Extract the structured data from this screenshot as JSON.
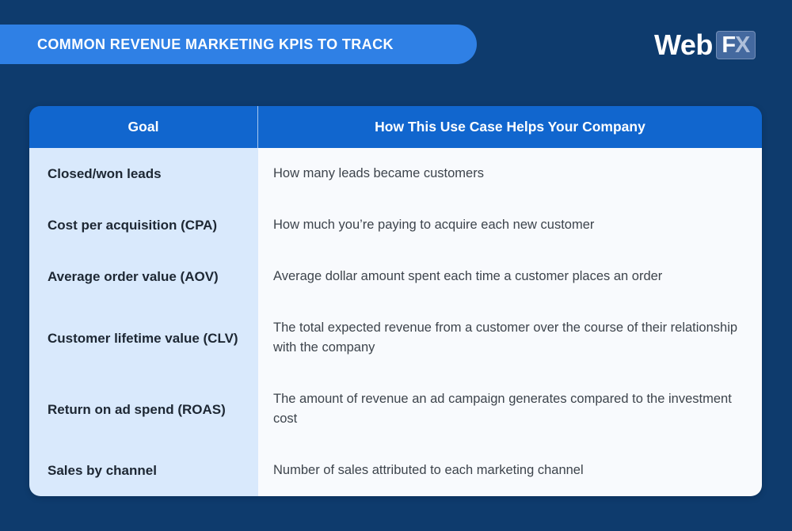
{
  "banner": {
    "title": "COMMON REVENUE MARKETING KPIS TO TRACK"
  },
  "logo": {
    "web": "Web",
    "f": "F",
    "x": "X"
  },
  "table": {
    "headers": [
      "Goal",
      "How This Use Case Helps Your Company"
    ],
    "rows": [
      {
        "goal": "Closed/won leads",
        "description": "How many leads became customers"
      },
      {
        "goal": "Cost per acquisition (CPA)",
        "description": "How much you’re paying to acquire each new customer"
      },
      {
        "goal": "Average order value (AOV)",
        "description": "Average dollar amount spent each time a customer places an order"
      },
      {
        "goal": "Customer lifetime value (CLV)",
        "description": "The total expected revenue from a customer over the course of their relationship with the company"
      },
      {
        "goal": "Return on ad spend (ROAS)",
        "description": "The amount of revenue an ad campaign generates compared to the investment cost"
      },
      {
        "goal": "Sales by channel",
        "description": "Number of sales attributed to each marketing channel"
      }
    ]
  },
  "colors": {
    "background": "#0e3b6d",
    "banner": "#2f80e5",
    "header": "#1166ce",
    "header_divider": "#a9c9ef",
    "goal_column": "#d9e9fc",
    "description_column": "#f8fafd",
    "goal_text": "#1d2733",
    "description_text": "#3d444c",
    "header_text": "#ffffff",
    "logo_box": "#44699f",
    "logo_x": "#aebfda"
  }
}
